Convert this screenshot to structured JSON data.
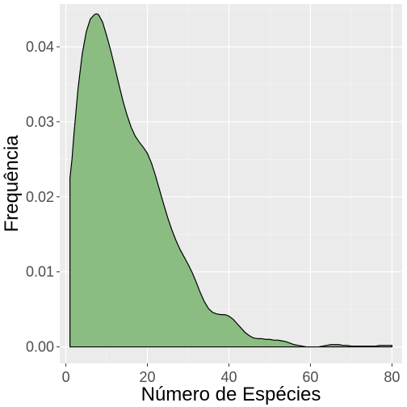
{
  "chart_data": {
    "type": "area",
    "title": "",
    "xlabel": "Número de Espécies",
    "ylabel": "Frequência",
    "xlim": [
      -1.5,
      82.5
    ],
    "ylim": [
      -0.0022,
      0.0457
    ],
    "x_ticks": [
      0,
      20,
      40,
      60,
      80
    ],
    "x_tick_labels": [
      "0",
      "20",
      "40",
      "60",
      "80"
    ],
    "y_ticks": [
      0,
      0.01,
      0.02,
      0.03,
      0.04
    ],
    "y_tick_labels": [
      "0.00",
      "0.01",
      "0.02",
      "0.03",
      "0.04"
    ],
    "grid": true,
    "legend": "none",
    "fill_color": "#8bbd82",
    "line_color": "#000000",
    "panel_color": "#ebebeb",
    "series": [
      {
        "x": [
          1,
          1.5,
          2,
          3,
          4,
          5,
          6,
          7,
          7.5,
          8,
          9,
          10,
          11,
          12,
          13,
          14,
          15,
          16,
          17,
          18,
          19,
          20,
          21,
          22,
          23,
          24,
          25,
          26,
          27,
          28,
          29,
          30,
          31,
          32,
          33,
          34,
          35,
          36,
          37,
          38,
          39,
          40,
          41,
          42,
          43,
          44,
          45,
          46,
          47,
          48,
          49,
          50,
          51,
          52,
          53,
          54,
          55,
          56,
          57,
          58,
          59,
          60,
          61,
          62,
          63,
          64,
          65,
          66,
          67,
          68,
          69,
          70,
          71,
          72,
          73,
          74,
          75,
          76,
          77,
          78,
          79,
          80
        ],
        "y": [
          0.0225,
          0.025,
          0.0285,
          0.0345,
          0.039,
          0.042,
          0.0437,
          0.0443,
          0.0444,
          0.0443,
          0.0433,
          0.0415,
          0.0395,
          0.0373,
          0.035,
          0.0328,
          0.0309,
          0.0293,
          0.0281,
          0.0273,
          0.0266,
          0.0258,
          0.0245,
          0.0228,
          0.0209,
          0.019,
          0.0172,
          0.0156,
          0.0142,
          0.013,
          0.012,
          0.011,
          0.0099,
          0.0086,
          0.0072,
          0.006,
          0.0051,
          0.0046,
          0.0044,
          0.0043,
          0.0043,
          0.0041,
          0.0037,
          0.0031,
          0.0025,
          0.0019,
          0.0015,
          0.0012,
          0.0011,
          0.0011,
          0.001,
          0.001,
          0.0009,
          0.0009,
          0.0008,
          0.0007,
          0.0005,
          0.0003,
          0.0002,
          0.0001,
          0.0,
          0.0,
          0.0,
          0.0,
          0.0001,
          0.0002,
          0.0003,
          0.0003,
          0.0003,
          0.0002,
          0.0002,
          0.0001,
          0.0001,
          0.0001,
          0.0001,
          0.0001,
          0.0001,
          0.0001,
          0.0002,
          0.0002,
          0.0002,
          0.0002
        ]
      }
    ]
  }
}
